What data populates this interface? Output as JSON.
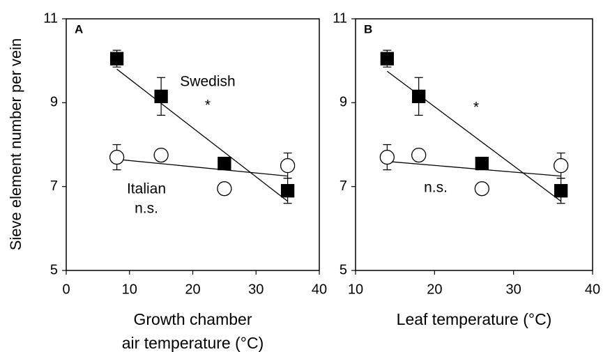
{
  "ylabel": "Sieve element number per vein",
  "chart_data": [
    {
      "type": "scatter",
      "panel": "A",
      "xlabel": [
        "Growth chamber",
        "air temperature (°C)"
      ],
      "xlim": [
        0,
        40
      ],
      "xticks": [
        0,
        10,
        20,
        30,
        40
      ],
      "ylim": [
        5,
        11
      ],
      "yticks": [
        5,
        7,
        9,
        11
      ],
      "series": [
        {
          "marker": "square",
          "color": "#000000",
          "x": [
            8,
            15,
            25,
            35
          ],
          "values": [
            10.05,
            9.15,
            7.55,
            6.9
          ],
          "errors": [
            0.2,
            0.45,
            null,
            0.3
          ],
          "fit": {
            "x": [
              8,
              35
            ],
            "y": [
              9.8,
              6.65
            ]
          }
        },
        {
          "marker": "circle",
          "color": "#ffffff",
          "x": [
            8,
            15,
            25,
            35
          ],
          "values": [
            7.7,
            7.75,
            6.95,
            7.5
          ],
          "errors": [
            0.3,
            null,
            null,
            0.3
          ],
          "fit": {
            "x": [
              8,
              35
            ],
            "y": [
              7.65,
              7.25
            ]
          }
        }
      ],
      "annotations": [
        "Swedish",
        "*",
        "Italian",
        "n.s."
      ]
    },
    {
      "type": "scatter",
      "panel": "B",
      "xlabel": [
        "Leaf temperature (°C)"
      ],
      "xlim": [
        10,
        40
      ],
      "xticks": [
        10,
        20,
        30,
        40
      ],
      "ylim": [
        5,
        11
      ],
      "yticks": [
        5,
        7,
        9,
        11
      ],
      "series": [
        {
          "marker": "square",
          "color": "#000000",
          "x": [
            14,
            18,
            26,
            36
          ],
          "values": [
            10.05,
            9.15,
            7.55,
            6.9
          ],
          "errors": [
            0.2,
            0.45,
            null,
            0.3
          ],
          "fit": {
            "x": [
              14,
              36
            ],
            "y": [
              9.75,
              6.65
            ]
          }
        },
        {
          "marker": "circle",
          "color": "#ffffff",
          "x": [
            14,
            18,
            26,
            36
          ],
          "values": [
            7.7,
            7.75,
            6.95,
            7.5
          ],
          "errors": [
            0.3,
            null,
            null,
            0.3
          ],
          "fit": {
            "x": [
              14,
              36
            ],
            "y": [
              7.6,
              7.25
            ]
          }
        }
      ],
      "annotations": [
        "*",
        "n.s."
      ]
    }
  ]
}
